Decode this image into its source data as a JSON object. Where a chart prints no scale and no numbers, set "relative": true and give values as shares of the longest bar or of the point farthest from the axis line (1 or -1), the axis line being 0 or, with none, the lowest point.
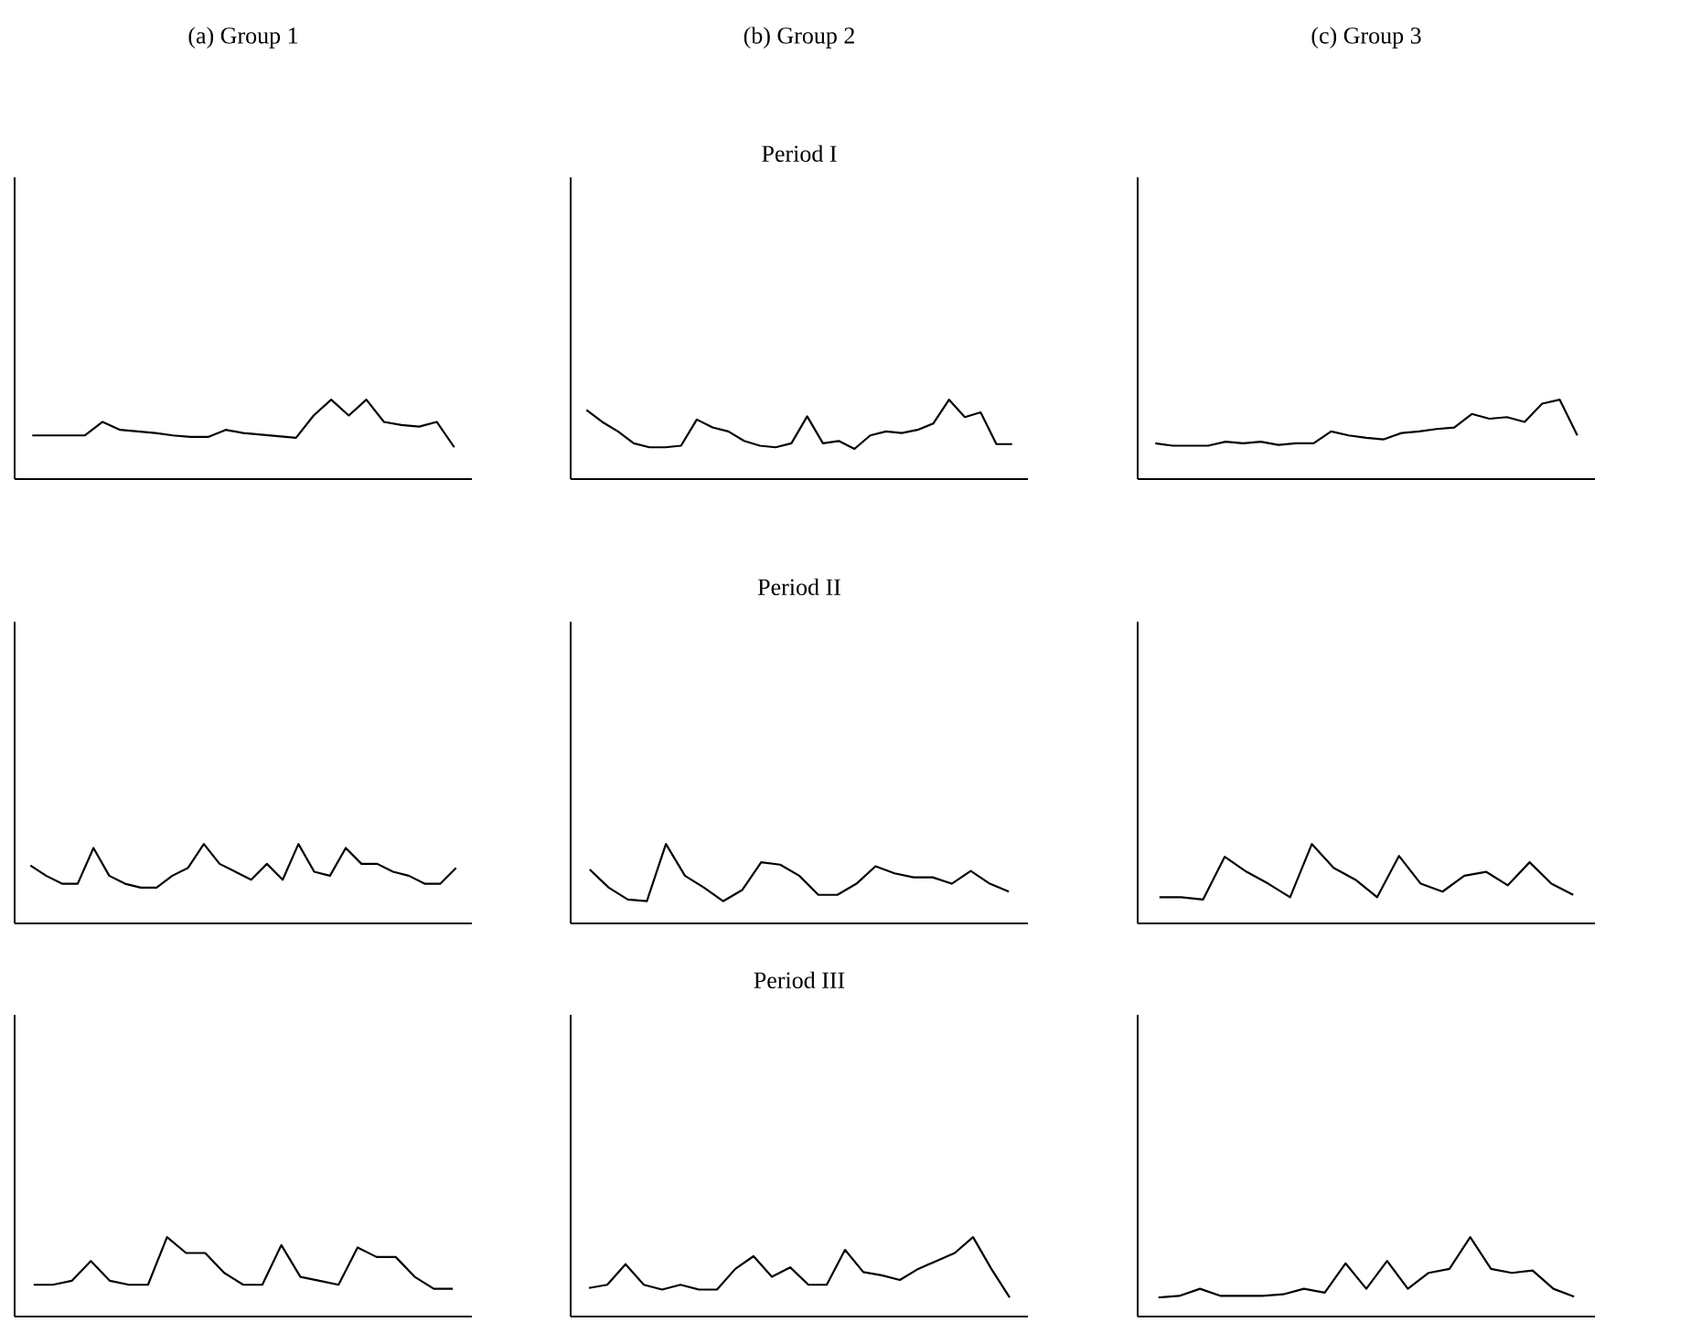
{
  "chart_data": [
    {
      "type": "line",
      "relative": true,
      "title": "(a) Group 1",
      "color": "#000000",
      "categories": [
        null,
        null,
        null,
        null,
        null,
        null,
        null,
        null,
        null,
        null,
        null,
        null,
        null,
        null,
        null,
        null,
        null,
        null,
        null,
        null,
        null,
        null,
        null,
        null,
        null
      ],
      "values": [
        0.55,
        0.55,
        0.55,
        0.55,
        0.72,
        0.62,
        0.6,
        0.58,
        0.55,
        0.53,
        0.53,
        0.62,
        0.58,
        0.56,
        0.54,
        0.52,
        0.8,
        1.0,
        0.8,
        1.0,
        0.72,
        0.68,
        0.66,
        0.72,
        0.4
      ]
    },
    {
      "type": "line",
      "relative": true,
      "title": "(b) Group 2",
      "subtitle": "Period I",
      "color": "#000000",
      "categories": [
        null,
        null,
        null,
        null,
        null,
        null,
        null,
        null,
        null,
        null,
        null,
        null,
        null,
        null,
        null,
        null,
        null,
        null,
        null,
        null,
        null,
        null,
        null,
        null,
        null,
        null,
        null,
        null
      ],
      "values": [
        0.87,
        0.72,
        0.6,
        0.45,
        0.4,
        0.4,
        0.42,
        0.75,
        0.65,
        0.6,
        0.48,
        0.42,
        0.4,
        0.45,
        0.79,
        0.45,
        0.48,
        0.38,
        0.55,
        0.6,
        0.58,
        0.62,
        0.7,
        1.0,
        0.78,
        0.84,
        0.44,
        0.44
      ]
    },
    {
      "type": "line",
      "relative": true,
      "title": "(c) Group 3",
      "color": "#000000",
      "categories": [
        null,
        null,
        null,
        null,
        null,
        null,
        null,
        null,
        null,
        null,
        null,
        null,
        null,
        null,
        null,
        null,
        null,
        null,
        null,
        null,
        null,
        null,
        null,
        null,
        null
      ],
      "values": [
        0.45,
        0.42,
        0.42,
        0.42,
        0.47,
        0.45,
        0.47,
        0.43,
        0.45,
        0.45,
        0.6,
        0.55,
        0.52,
        0.5,
        0.58,
        0.6,
        0.63,
        0.65,
        0.82,
        0.76,
        0.78,
        0.72,
        0.95,
        1.0,
        0.55
      ]
    },
    {
      "type": "line",
      "relative": true,
      "color": "#000000",
      "categories": [
        null,
        null,
        null,
        null,
        null,
        null,
        null,
        null,
        null,
        null,
        null,
        null,
        null,
        null,
        null,
        null,
        null,
        null,
        null,
        null,
        null,
        null,
        null,
        null,
        null,
        null,
        null,
        null
      ],
      "values": [
        0.73,
        0.6,
        0.5,
        0.5,
        0.95,
        0.6,
        0.5,
        0.45,
        0.45,
        0.6,
        0.7,
        1.0,
        0.75,
        0.65,
        0.55,
        0.75,
        0.55,
        1.0,
        0.65,
        0.6,
        0.95,
        0.75,
        0.75,
        0.65,
        0.6,
        0.5,
        0.5,
        0.7
      ]
    },
    {
      "type": "line",
      "relative": true,
      "title": "Period II",
      "color": "#000000",
      "categories": [
        null,
        null,
        null,
        null,
        null,
        null,
        null,
        null,
        null,
        null,
        null,
        null,
        null,
        null,
        null,
        null,
        null,
        null,
        null,
        null,
        null,
        null,
        null
      ],
      "values": [
        0.68,
        0.45,
        0.3,
        0.28,
        1.0,
        0.6,
        0.45,
        0.28,
        0.42,
        0.77,
        0.74,
        0.6,
        0.36,
        0.36,
        0.5,
        0.72,
        0.63,
        0.58,
        0.58,
        0.5,
        0.66,
        0.5,
        0.4
      ]
    },
    {
      "type": "line",
      "relative": true,
      "color": "#000000",
      "categories": [
        null,
        null,
        null,
        null,
        null,
        null,
        null,
        null,
        null,
        null,
        null,
        null,
        null,
        null,
        null,
        null,
        null,
        null,
        null,
        null
      ],
      "values": [
        0.33,
        0.33,
        0.3,
        0.84,
        0.65,
        0.5,
        0.33,
        1.0,
        0.7,
        0.55,
        0.33,
        0.85,
        0.5,
        0.4,
        0.6,
        0.65,
        0.48,
        0.77,
        0.5,
        0.36
      ]
    },
    {
      "type": "line",
      "relative": true,
      "color": "#000000",
      "categories": [
        null,
        null,
        null,
        null,
        null,
        null,
        null,
        null,
        null,
        null,
        null,
        null,
        null,
        null,
        null,
        null,
        null,
        null,
        null,
        null,
        null,
        null,
        null
      ],
      "values": [
        0.4,
        0.4,
        0.45,
        0.7,
        0.45,
        0.4,
        0.4,
        1.0,
        0.8,
        0.8,
        0.55,
        0.4,
        0.4,
        0.9,
        0.5,
        0.45,
        0.4,
        0.87,
        0.75,
        0.75,
        0.5,
        0.35,
        0.35
      ]
    },
    {
      "type": "line",
      "relative": true,
      "title": "Period III",
      "color": "#000000",
      "categories": [
        null,
        null,
        null,
        null,
        null,
        null,
        null,
        null,
        null,
        null,
        null,
        null,
        null,
        null,
        null,
        null,
        null,
        null,
        null,
        null,
        null,
        null,
        null,
        null
      ],
      "values": [
        0.36,
        0.4,
        0.66,
        0.4,
        0.34,
        0.4,
        0.34,
        0.34,
        0.6,
        0.76,
        0.5,
        0.62,
        0.4,
        0.4,
        0.84,
        0.56,
        0.52,
        0.46,
        0.6,
        0.7,
        0.8,
        1.0,
        0.6,
        0.24
      ]
    },
    {
      "type": "line",
      "relative": true,
      "color": "#000000",
      "categories": [
        null,
        null,
        null,
        null,
        null,
        null,
        null,
        null,
        null,
        null,
        null,
        null,
        null,
        null,
        null,
        null,
        null,
        null,
        null,
        null,
        null
      ],
      "values": [
        0.24,
        0.26,
        0.35,
        0.26,
        0.26,
        0.26,
        0.28,
        0.35,
        0.3,
        0.67,
        0.35,
        0.7,
        0.35,
        0.55,
        0.6,
        1.0,
        0.6,
        0.55,
        0.58,
        0.35,
        0.25
      ]
    }
  ]
}
